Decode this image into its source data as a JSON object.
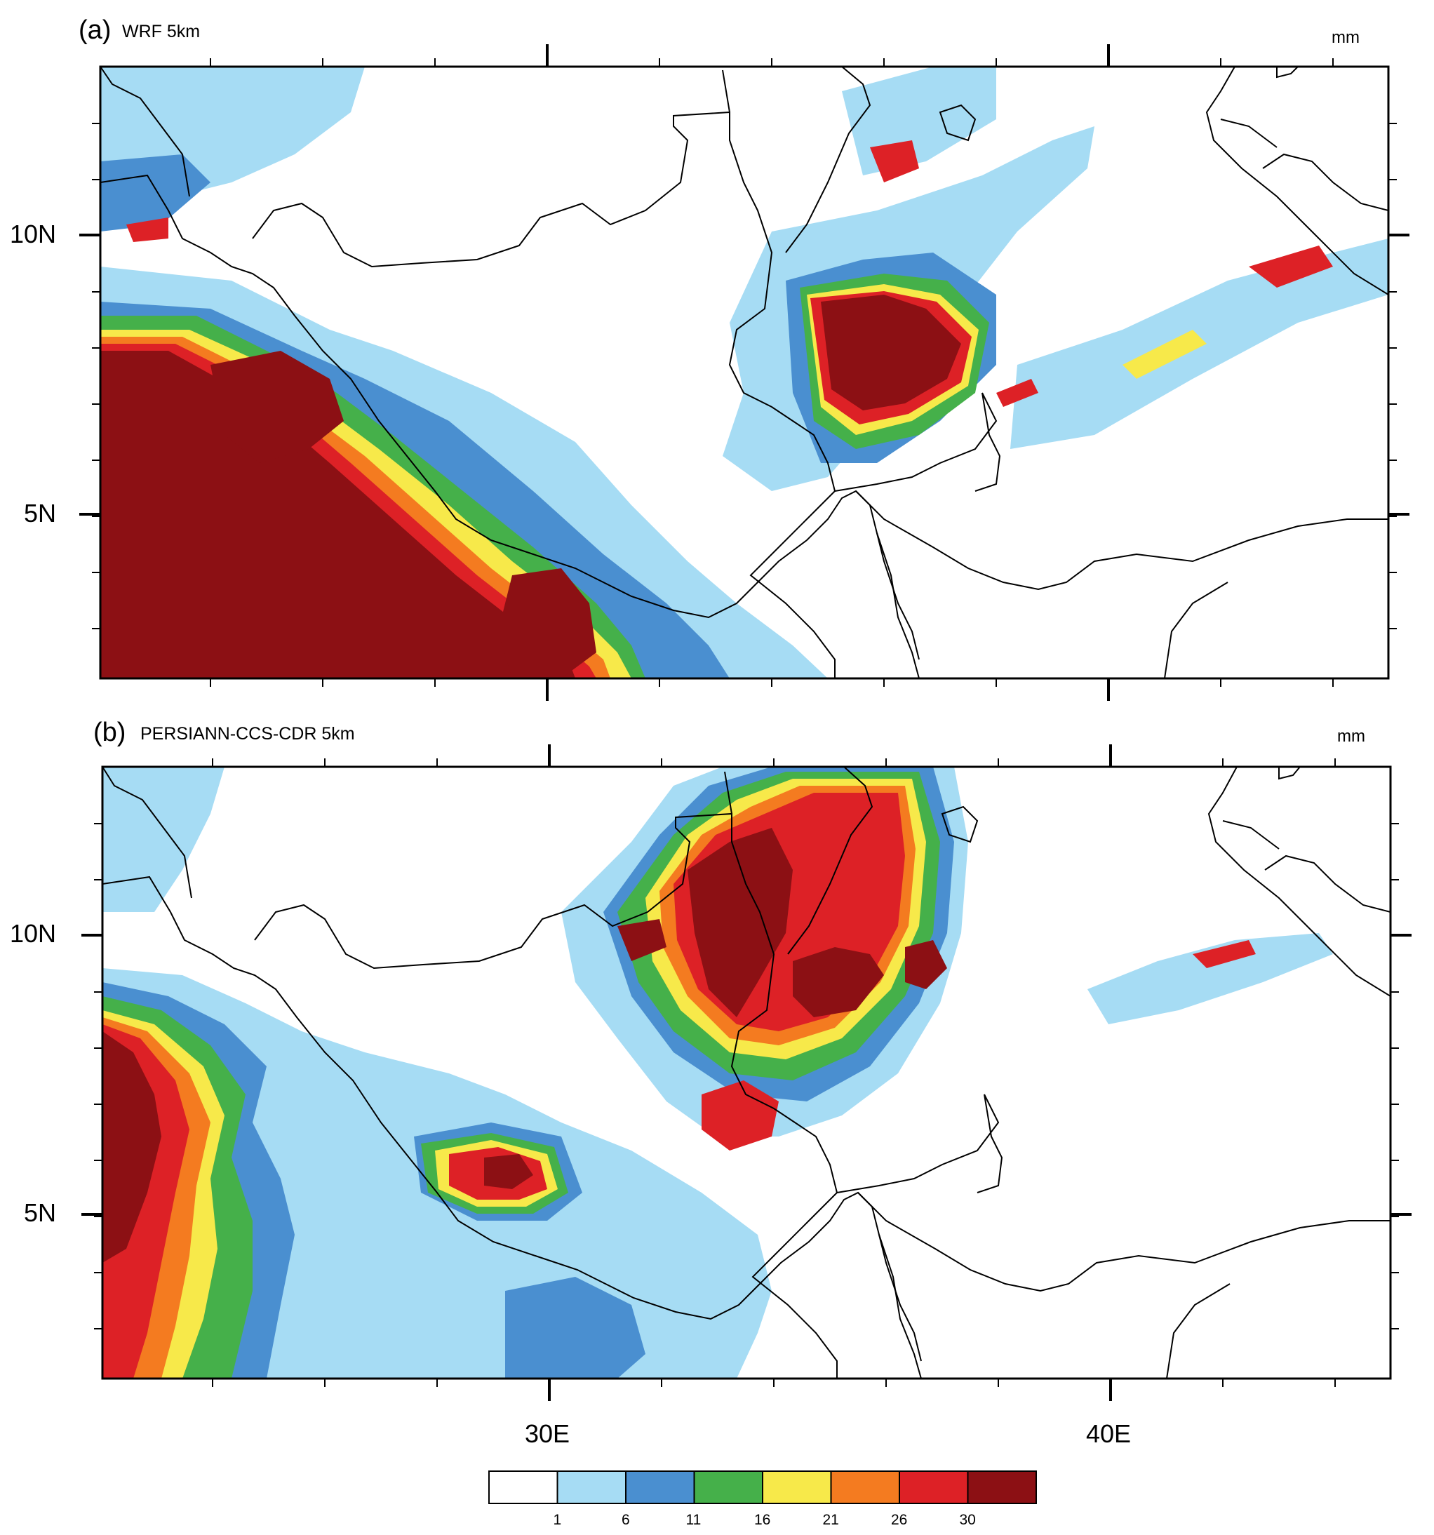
{
  "panels": [
    {
      "label": "(a)",
      "title": "WRF 5km",
      "unit": "mm"
    },
    {
      "label": "(b)",
      "title": "PERSIANN-CCS-CDR 5km",
      "unit": "mm"
    }
  ],
  "lat_labels": [
    "10N",
    "5N"
  ],
  "lon_labels": [
    "30E",
    "40E"
  ],
  "colorbar": {
    "colors": [
      "#ffffff",
      "#a6dcf4",
      "#4a8fd0",
      "#45b04a",
      "#f7e94a",
      "#f47b20",
      "#dd2126",
      "#8c1014"
    ],
    "labels": [
      "1",
      "6",
      "11",
      "16",
      "21",
      "26",
      "30"
    ]
  },
  "palette": {
    "cont1": "#a6dcf4",
    "cont2": "#4a8fd0",
    "cont3": "#45b04a",
    "cont4": "#f7e94a",
    "cont5": "#f47b20",
    "cont6": "#dd2126",
    "cont7": "#8c1014"
  }
}
